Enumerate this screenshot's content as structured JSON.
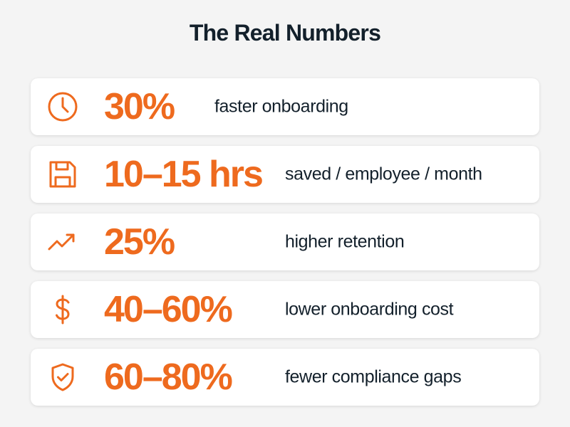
{
  "title": "The Real Numbers",
  "accent_color": "#ee6a1e",
  "rows": [
    {
      "icon": "clock-icon",
      "value": "30%",
      "label": "faster onboarding"
    },
    {
      "icon": "save-disk-icon",
      "value": "10–15 hrs",
      "label": "saved / employee / month"
    },
    {
      "icon": "trending-up-icon",
      "value": "25%",
      "label": "higher retention"
    },
    {
      "icon": "dollar-sign-icon",
      "value": "40–60%",
      "label": "lower onboarding cost"
    },
    {
      "icon": "shield-check-icon",
      "value": "60–80%",
      "label": "fewer compliance gaps"
    }
  ]
}
